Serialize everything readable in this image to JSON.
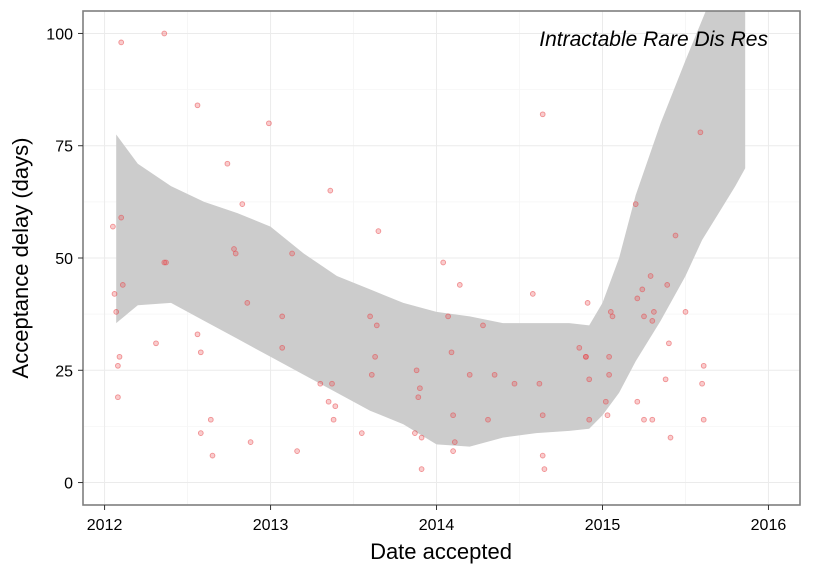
{
  "chart_data": {
    "type": "scatter",
    "title": "Intractable Rare Dis Res",
    "xlabel": "Date accepted",
    "ylabel": "Acceptance delay (days)",
    "xlim": [
      2011.87,
      2016.19
    ],
    "ylim": [
      -5,
      105
    ],
    "x_ticks": [
      "2012",
      "2013",
      "2014",
      "2015",
      "2016"
    ],
    "y_ticks": [
      "0",
      "25",
      "50",
      "75",
      "100"
    ],
    "grid": true,
    "colors": {
      "point": "#e8474a",
      "ribbon": "#cccccc",
      "panel_border": "#7f7f7f",
      "grid_major": "#ebebeb",
      "grid_minor": "#f5f5f5"
    },
    "points": [
      {
        "x": 2012.05,
        "y": 57
      },
      {
        "x": 2012.06,
        "y": 42
      },
      {
        "x": 2012.07,
        "y": 38
      },
      {
        "x": 2012.08,
        "y": 26
      },
      {
        "x": 2012.08,
        "y": 19
      },
      {
        "x": 2012.09,
        "y": 28
      },
      {
        "x": 2012.1,
        "y": 98
      },
      {
        "x": 2012.1,
        "y": 59
      },
      {
        "x": 2012.11,
        "y": 44
      },
      {
        "x": 2012.31,
        "y": 31
      },
      {
        "x": 2012.36,
        "y": 100
      },
      {
        "x": 2012.36,
        "y": 49
      },
      {
        "x": 2012.37,
        "y": 49
      },
      {
        "x": 2012.56,
        "y": 84
      },
      {
        "x": 2012.56,
        "y": 33
      },
      {
        "x": 2012.58,
        "y": 29
      },
      {
        "x": 2012.58,
        "y": 11
      },
      {
        "x": 2012.64,
        "y": 14
      },
      {
        "x": 2012.65,
        "y": 6
      },
      {
        "x": 2012.74,
        "y": 71
      },
      {
        "x": 2012.78,
        "y": 52
      },
      {
        "x": 2012.79,
        "y": 51
      },
      {
        "x": 2012.83,
        "y": 62
      },
      {
        "x": 2012.86,
        "y": 40
      },
      {
        "x": 2012.88,
        "y": 9
      },
      {
        "x": 2012.99,
        "y": 80
      },
      {
        "x": 2013.07,
        "y": 37
      },
      {
        "x": 2013.07,
        "y": 30
      },
      {
        "x": 2013.13,
        "y": 51
      },
      {
        "x": 2013.16,
        "y": 7
      },
      {
        "x": 2013.3,
        "y": 22
      },
      {
        "x": 2013.35,
        "y": 18
      },
      {
        "x": 2013.36,
        "y": 65
      },
      {
        "x": 2013.37,
        "y": 22
      },
      {
        "x": 2013.38,
        "y": 14
      },
      {
        "x": 2013.39,
        "y": 17
      },
      {
        "x": 2013.55,
        "y": 11
      },
      {
        "x": 2013.6,
        "y": 37
      },
      {
        "x": 2013.61,
        "y": 24
      },
      {
        "x": 2013.63,
        "y": 28
      },
      {
        "x": 2013.64,
        "y": 35
      },
      {
        "x": 2013.65,
        "y": 56
      },
      {
        "x": 2013.87,
        "y": 11
      },
      {
        "x": 2013.88,
        "y": 25
      },
      {
        "x": 2013.89,
        "y": 19
      },
      {
        "x": 2013.9,
        "y": 21
      },
      {
        "x": 2013.91,
        "y": 10
      },
      {
        "x": 2013.91,
        "y": 3
      },
      {
        "x": 2014.04,
        "y": 49
      },
      {
        "x": 2014.07,
        "y": 37
      },
      {
        "x": 2014.09,
        "y": 29
      },
      {
        "x": 2014.1,
        "y": 15
      },
      {
        "x": 2014.1,
        "y": 7
      },
      {
        "x": 2014.11,
        "y": 9
      },
      {
        "x": 2014.14,
        "y": 44
      },
      {
        "x": 2014.2,
        "y": 24
      },
      {
        "x": 2014.28,
        "y": 35
      },
      {
        "x": 2014.31,
        "y": 14
      },
      {
        "x": 2014.35,
        "y": 24
      },
      {
        "x": 2014.47,
        "y": 22
      },
      {
        "x": 2014.58,
        "y": 42
      },
      {
        "x": 2014.62,
        "y": 22
      },
      {
        "x": 2014.64,
        "y": 82
      },
      {
        "x": 2014.64,
        "y": 15
      },
      {
        "x": 2014.64,
        "y": 6
      },
      {
        "x": 2014.65,
        "y": 3
      },
      {
        "x": 2014.86,
        "y": 30
      },
      {
        "x": 2014.9,
        "y": 28
      },
      {
        "x": 2014.9,
        "y": 28
      },
      {
        "x": 2014.91,
        "y": 40
      },
      {
        "x": 2014.92,
        "y": 23
      },
      {
        "x": 2014.92,
        "y": 14
      },
      {
        "x": 2015.02,
        "y": 18
      },
      {
        "x": 2015.03,
        "y": 15
      },
      {
        "x": 2015.04,
        "y": 28
      },
      {
        "x": 2015.04,
        "y": 24
      },
      {
        "x": 2015.05,
        "y": 38
      },
      {
        "x": 2015.06,
        "y": 37
      },
      {
        "x": 2015.2,
        "y": 62
      },
      {
        "x": 2015.21,
        "y": 41
      },
      {
        "x": 2015.21,
        "y": 18
      },
      {
        "x": 2015.24,
        "y": 43
      },
      {
        "x": 2015.25,
        "y": 14
      },
      {
        "x": 2015.25,
        "y": 37
      },
      {
        "x": 2015.29,
        "y": 46
      },
      {
        "x": 2015.3,
        "y": 36
      },
      {
        "x": 2015.3,
        "y": 14
      },
      {
        "x": 2015.31,
        "y": 38
      },
      {
        "x": 2015.38,
        "y": 23
      },
      {
        "x": 2015.39,
        "y": 44
      },
      {
        "x": 2015.4,
        "y": 31
      },
      {
        "x": 2015.41,
        "y": 10
      },
      {
        "x": 2015.44,
        "y": 55
      },
      {
        "x": 2015.5,
        "y": 38
      },
      {
        "x": 2015.59,
        "y": 78
      },
      {
        "x": 2015.6,
        "y": 22
      },
      {
        "x": 2015.61,
        "y": 26
      },
      {
        "x": 2015.61,
        "y": 14
      }
    ],
    "smooth_band": {
      "x": [
        2012.07,
        2012.2,
        2012.4,
        2012.6,
        2012.8,
        2013.0,
        2013.2,
        2013.4,
        2013.6,
        2013.8,
        2014.0,
        2014.2,
        2014.4,
        2014.6,
        2014.8,
        2014.92,
        2015.0,
        2015.1,
        2015.2,
        2015.35,
        2015.5,
        2015.6,
        2015.7,
        2015.8,
        2015.86
      ],
      "upper": [
        77.5,
        71,
        66,
        62.5,
        60,
        57,
        51,
        46,
        43,
        40,
        38,
        37,
        35.5,
        35.5,
        35.5,
        35,
        40,
        50,
        64,
        80,
        94,
        103,
        112,
        118,
        122
      ],
      "lower": [
        35.5,
        39.5,
        40,
        36,
        32,
        28,
        24,
        20,
        16,
        13,
        8.5,
        8,
        10,
        11,
        11.5,
        12,
        15,
        20,
        27,
        36,
        46,
        54,
        60,
        66,
        70
      ]
    }
  }
}
